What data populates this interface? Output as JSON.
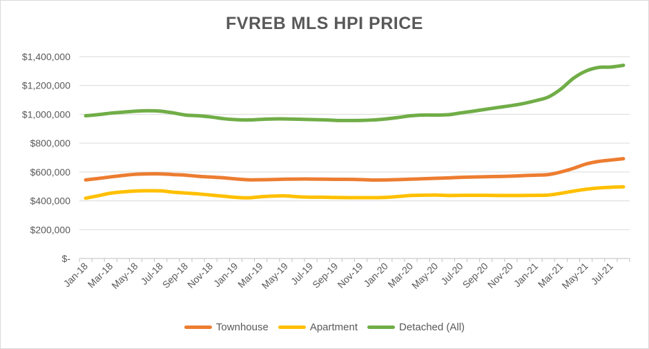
{
  "chart_data": {
    "type": "line",
    "title": "FVREB MLS HPI PRICE",
    "xlabel": "",
    "ylabel": "",
    "ylim": [
      0,
      1400000
    ],
    "yticks": [
      "$-",
      "$200,000",
      "$400,000",
      "$600,000",
      "$800,000",
      "$1,000,000",
      "$1,200,000",
      "$1,400,000"
    ],
    "grid": true,
    "legend_position": "bottom",
    "categories": [
      "Jan-18",
      "Feb-18",
      "Mar-18",
      "Apr-18",
      "May-18",
      "Jun-18",
      "Jul-18",
      "Aug-18",
      "Sep-18",
      "Oct-18",
      "Nov-18",
      "Dec-18",
      "Jan-19",
      "Feb-19",
      "Mar-19",
      "Apr-19",
      "May-19",
      "Jun-19",
      "Jul-19",
      "Aug-19",
      "Sep-19",
      "Oct-19",
      "Nov-19",
      "Dec-19",
      "Jan-20",
      "Feb-20",
      "Mar-20",
      "Apr-20",
      "May-20",
      "Jun-20",
      "Jul-20",
      "Aug-20",
      "Sep-20",
      "Oct-20",
      "Nov-20",
      "Dec-20",
      "Jan-21",
      "Feb-21",
      "Mar-21",
      "Apr-21",
      "May-21",
      "Jun-21",
      "Jul-21",
      "Aug-21"
    ],
    "tick_labels": [
      "Jan-18",
      "Mar-18",
      "May-18",
      "Jul-18",
      "Sep-18",
      "Nov-18",
      "Jan-19",
      "Mar-19",
      "May-19",
      "Jul-19",
      "Sep-19",
      "Nov-19",
      "Jan-20",
      "Mar-20",
      "May-20",
      "Jul-20",
      "Sep-20",
      "Nov-20",
      "Jan-21",
      "Mar-21",
      "May-21",
      "Jul-21"
    ],
    "series": [
      {
        "name": "Townhouse",
        "color": "#ED7D31",
        "values": [
          545000,
          555000,
          566000,
          576000,
          584000,
          587000,
          587000,
          582000,
          578000,
          570000,
          565000,
          560000,
          552000,
          546000,
          546000,
          548000,
          550000,
          551000,
          551000,
          550000,
          549000,
          549000,
          547000,
          544000,
          545000,
          547000,
          550000,
          553000,
          556000,
          559000,
          563000,
          565000,
          567000,
          569000,
          571000,
          575000,
          578000,
          582000,
          600000,
          625000,
          655000,
          673000,
          683000,
          692000
        ]
      },
      {
        "name": "Apartment",
        "color": "#FFC000",
        "values": [
          418000,
          435000,
          453000,
          462000,
          468000,
          470000,
          469000,
          460000,
          454000,
          448000,
          440000,
          432000,
          424000,
          421000,
          428000,
          433000,
          434000,
          428000,
          425000,
          425000,
          423000,
          422000,
          422000,
          422000,
          424000,
          430000,
          437000,
          439000,
          440000,
          437000,
          438000,
          438000,
          438000,
          437000,
          437000,
          437000,
          438000,
          440000,
          452000,
          467000,
          480000,
          489000,
          494000,
          497000
        ]
      },
      {
        "name": "Detached (All)",
        "color": "#70AD47",
        "values": [
          990000,
          998000,
          1008000,
          1015000,
          1022000,
          1025000,
          1022000,
          1010000,
          995000,
          990000,
          982000,
          970000,
          963000,
          961000,
          965000,
          968000,
          968000,
          966000,
          964000,
          962000,
          958000,
          957000,
          958000,
          961000,
          968000,
          978000,
          990000,
          995000,
          995000,
          997000,
          1010000,
          1022000,
          1035000,
          1048000,
          1060000,
          1075000,
          1095000,
          1120000,
          1175000,
          1250000,
          1300000,
          1325000,
          1328000,
          1340000
        ]
      }
    ]
  }
}
